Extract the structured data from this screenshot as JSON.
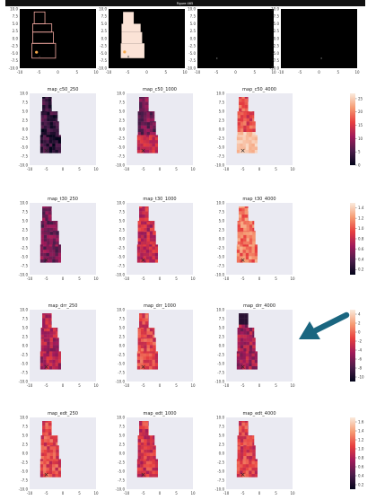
{
  "figure": {
    "window_title": "Figure 465",
    "colors": {
      "topbar": "#111111",
      "panel_bg": "#eaeaf2",
      "dark_panel_bg": "#000000",
      "marker": "#5b7fb5",
      "arrow": "#1a6680"
    }
  },
  "top_row": {
    "panels": [
      {
        "name": "outline",
        "xlim": [
          -10,
          10
        ],
        "ylim": [
          -10,
          10
        ],
        "xticks": [
          "-10",
          "-5",
          "0",
          "5",
          "10"
        ],
        "yticks": [
          "10.0",
          "7.5",
          "5.0",
          "2.5",
          "0.0",
          "-2.5",
          "-5.0",
          "-7.5",
          "-10.0"
        ]
      },
      {
        "name": "mask",
        "xlim": [
          -10,
          10
        ],
        "ylim": [
          -10,
          10
        ],
        "xticks": [
          "-10",
          "-5",
          "0",
          "5",
          "10"
        ],
        "yticks": [
          "10.0",
          "7.5",
          "5.0",
          "2.5",
          "0.0",
          "-2.5",
          "-5.0",
          "-7.5",
          "-10.0"
        ]
      },
      {
        "name": "blank-1",
        "xlim": [
          -10,
          10
        ],
        "ylim": [
          -10,
          10
        ],
        "xticks": [
          "-10",
          "-5",
          "0",
          "5",
          "10"
        ],
        "yticks": [
          "10.0",
          "7.5",
          "5.0",
          "2.5",
          "0.0",
          "-2.5",
          "-5.0",
          "-7.5",
          "-10.0"
        ]
      },
      {
        "name": "blank-2",
        "xlim": [
          -10,
          10
        ],
        "ylim": [
          -10,
          10
        ],
        "xticks": [
          "-10",
          "-5",
          "0",
          "5",
          "10"
        ],
        "yticks": [
          "10.0",
          "7.5",
          "5.0",
          "2.5",
          "0.0",
          "-2.5",
          "-5.0",
          "-7.5",
          "-10.0"
        ]
      }
    ]
  },
  "chart_data": {
    "type": "heatmap",
    "xlim": [
      -10,
      10
    ],
    "ylim": [
      -10,
      10
    ],
    "xticks": [
      "-10",
      "-5",
      "0",
      "5",
      "10"
    ],
    "yticks": [
      "10.0",
      "7.5",
      "5.0",
      "2.5",
      "0.0",
      "-2.5",
      "-5.0",
      "-7.5",
      "-10.0"
    ],
    "marker": {
      "symbol": "x",
      "x": -5,
      "y": -6
    },
    "rows": [
      {
        "panels": [
          "map_c50_250",
          "map_c50_1000",
          "map_c50_4000"
        ],
        "colorbar_ticks": [
          "25",
          "20",
          "15",
          "10",
          "5",
          "0"
        ],
        "range": [
          0,
          27
        ],
        "levels": [
          0.12,
          0.3,
          0.62
        ]
      },
      {
        "panels": [
          "map_t30_250",
          "map_t30_1000",
          "map_t30_4000"
        ],
        "colorbar_ticks": [
          "1.4",
          "1.2",
          "1.0",
          "0.8",
          "0.6",
          "0.4",
          "0.2"
        ],
        "range": [
          0.1,
          1.5
        ],
        "levels": [
          0.3,
          0.5,
          0.72
        ]
      },
      {
        "panels": [
          "map_drr_250",
          "map_drr_1000",
          "map_drr_4000"
        ],
        "colorbar_ticks": [
          "4",
          "2",
          "0",
          "-2",
          "-4",
          "-6",
          "-8",
          "-10"
        ],
        "range": [
          -11,
          5
        ],
        "levels": [
          0.45,
          0.6,
          0.4
        ]
      },
      {
        "panels": [
          "map_edt_250",
          "map_edt_1000",
          "map_edt_4000"
        ],
        "colorbar_ticks": [
          "1.6",
          "1.4",
          "1.2",
          "1.0",
          "0.8",
          "0.6",
          "0.4",
          "0.2"
        ],
        "range": [
          0.1,
          1.7
        ],
        "levels": [
          0.6,
          0.55,
          0.58
        ]
      }
    ]
  }
}
